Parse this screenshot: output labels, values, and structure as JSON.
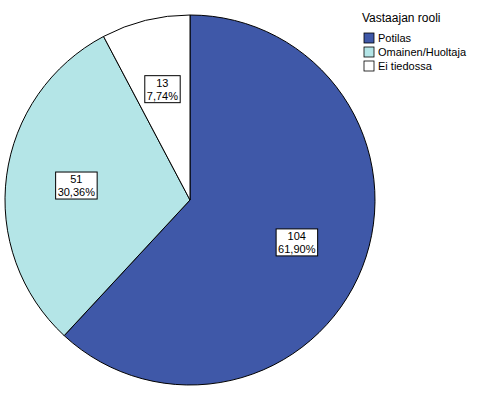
{
  "chart_data": {
    "type": "pie",
    "legend_title": "Vastaajan rooli",
    "categories": [
      "Potilas",
      "Omainen/Huoltaja",
      "Ei tiedossa"
    ],
    "values": [
      104,
      51,
      13
    ],
    "percentages": [
      61.9,
      30.36,
      7.74
    ],
    "percentage_labels": [
      "61,90%",
      "30,36%",
      "7,74%"
    ],
    "colors": [
      "#3f58a8",
      "#b4e5e7",
      "#ffffff"
    ],
    "data_labels": true,
    "legend": "top-right"
  }
}
